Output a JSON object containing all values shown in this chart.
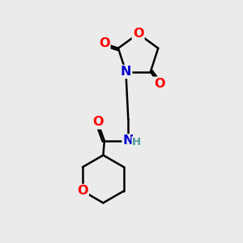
{
  "background_color": "#ebebeb",
  "atom_colors": {
    "O": "#ff0000",
    "N": "#0000cd",
    "C": "#000000",
    "H": "#4a9999"
  },
  "bond_color": "#000000",
  "bond_width": 1.8,
  "font_size_atoms": 11.5,
  "font_size_H": 9.5,
  "figsize": [
    3.0,
    3.0
  ],
  "dpi": 100
}
